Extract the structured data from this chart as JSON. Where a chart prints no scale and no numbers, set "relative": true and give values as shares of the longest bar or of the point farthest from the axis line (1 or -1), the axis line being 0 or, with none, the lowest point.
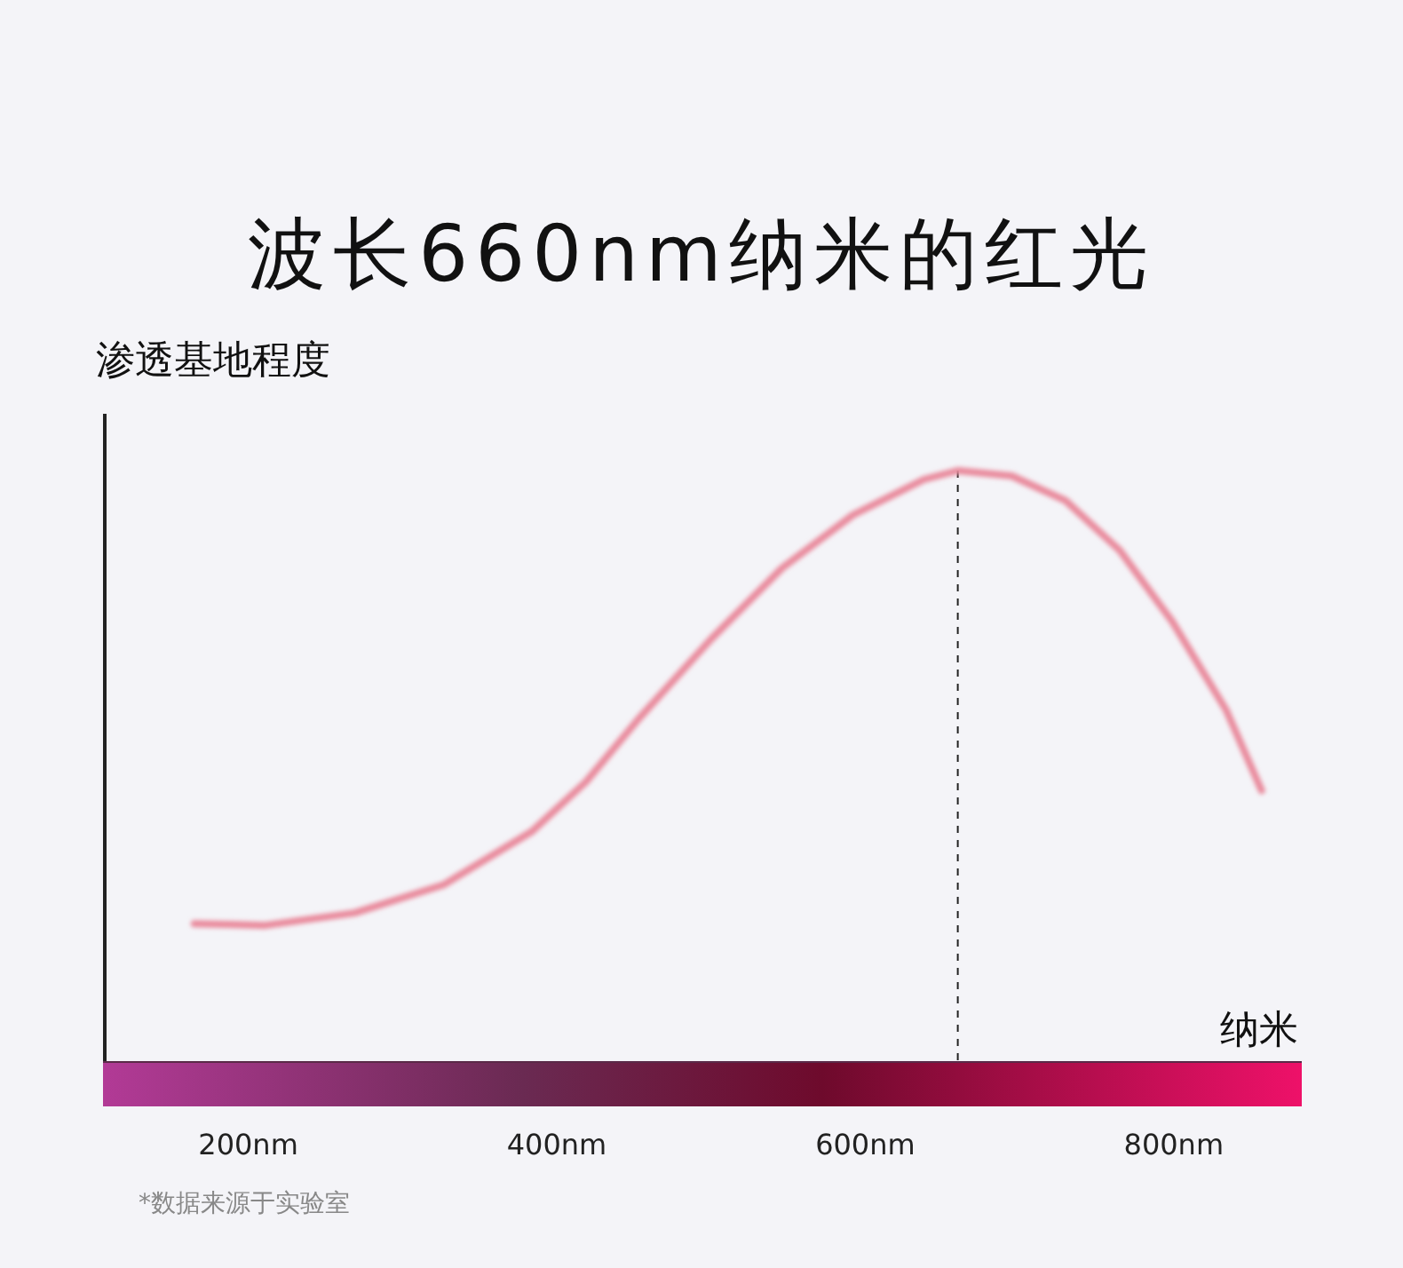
{
  "chart_data": {
    "type": "line",
    "title": "波长660nm纳米的红光",
    "xlabel": "纳米",
    "ylabel": "渗透基地程度",
    "relative": true,
    "xlim": [
      107,
      883
    ],
    "xticks": [
      {
        "value": 200,
        "label": "200nm"
      },
      {
        "value": 400,
        "label": "400nm"
      },
      {
        "value": 600,
        "label": "600nm"
      },
      {
        "value": 800,
        "label": "800nm"
      }
    ],
    "x": [
      165,
      211,
      269,
      327,
      384,
      419,
      453,
      500,
      546,
      592,
      638,
      660,
      695,
      730,
      765,
      799,
      834,
      857
    ],
    "series": [
      {
        "color": "#e98a9c",
        "values": [
          0.234,
          0.231,
          0.252,
          0.3,
          0.39,
          0.474,
          0.58,
          0.715,
          0.835,
          0.925,
          0.985,
          1,
          0.991,
          0.949,
          0.865,
          0.745,
          0.595,
          0.459
        ]
      }
    ],
    "ref_lines": [
      {
        "axis": "x",
        "value": 660,
        "line_style": "dashed",
        "color": "#222222"
      }
    ],
    "annotations": [
      "*数据来源于实验室"
    ]
  }
}
